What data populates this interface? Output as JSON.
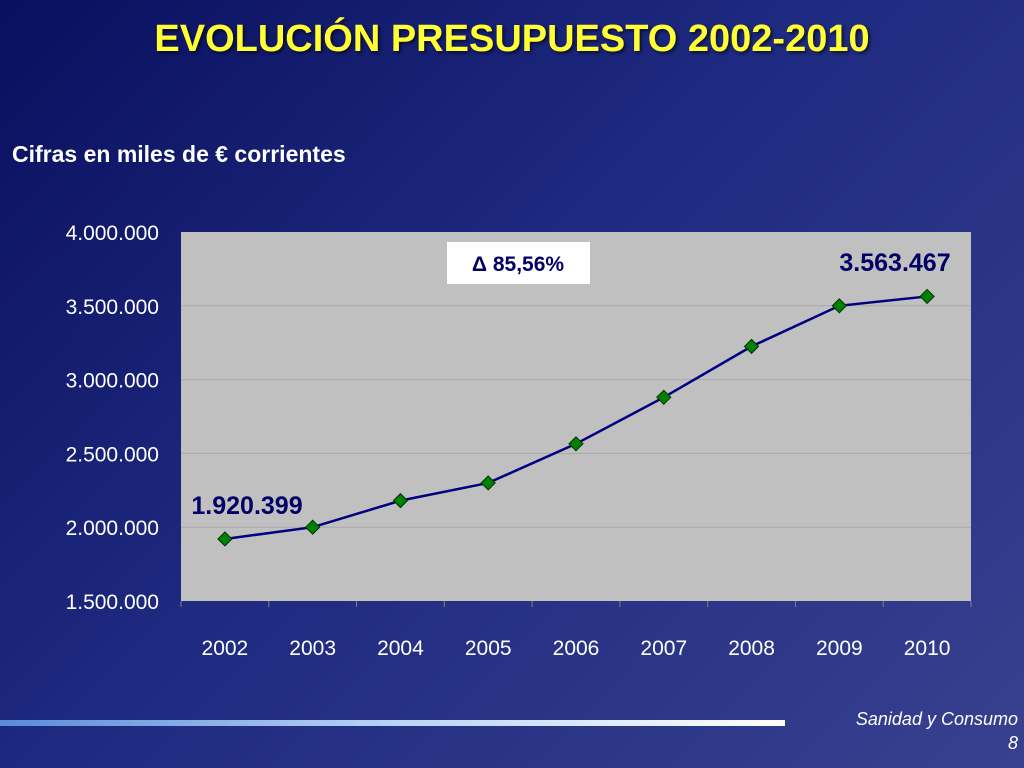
{
  "slide": {
    "title": "EVOLUCIÓN PRESUPUESTO 2002-2010",
    "subtitle": "Cifras en miles de € corrientes",
    "footer_text": "Sanidad y Consumo",
    "page_number": "8"
  },
  "chart_data": {
    "type": "line",
    "categories": [
      "2002",
      "2003",
      "2004",
      "2005",
      "2006",
      "2007",
      "2008",
      "2009",
      "2010"
    ],
    "series": [
      {
        "values": [
          1920399,
          2000000,
          2180000,
          2300000,
          2565000,
          2880000,
          3225000,
          3500000,
          3563467
        ]
      }
    ],
    "ylim": [
      1500000,
      4000000
    ],
    "yticks": [
      1500000,
      2000000,
      2500000,
      3000000,
      3500000,
      4000000
    ],
    "ytick_labels": [
      "1.500.000",
      "2.000.000",
      "2.500.000",
      "3.000.000",
      "3.500.000",
      "4.000.000"
    ],
    "data_labels": {
      "first": "1.920.399",
      "last": "3.563.467"
    },
    "annotation": "Δ 85,56%",
    "grid": true,
    "colors": {
      "plot_background": "#c0c0c0",
      "line": "#000080",
      "marker": "#008000",
      "data_label": "#000066",
      "axis_text": "#ffffff"
    }
  }
}
